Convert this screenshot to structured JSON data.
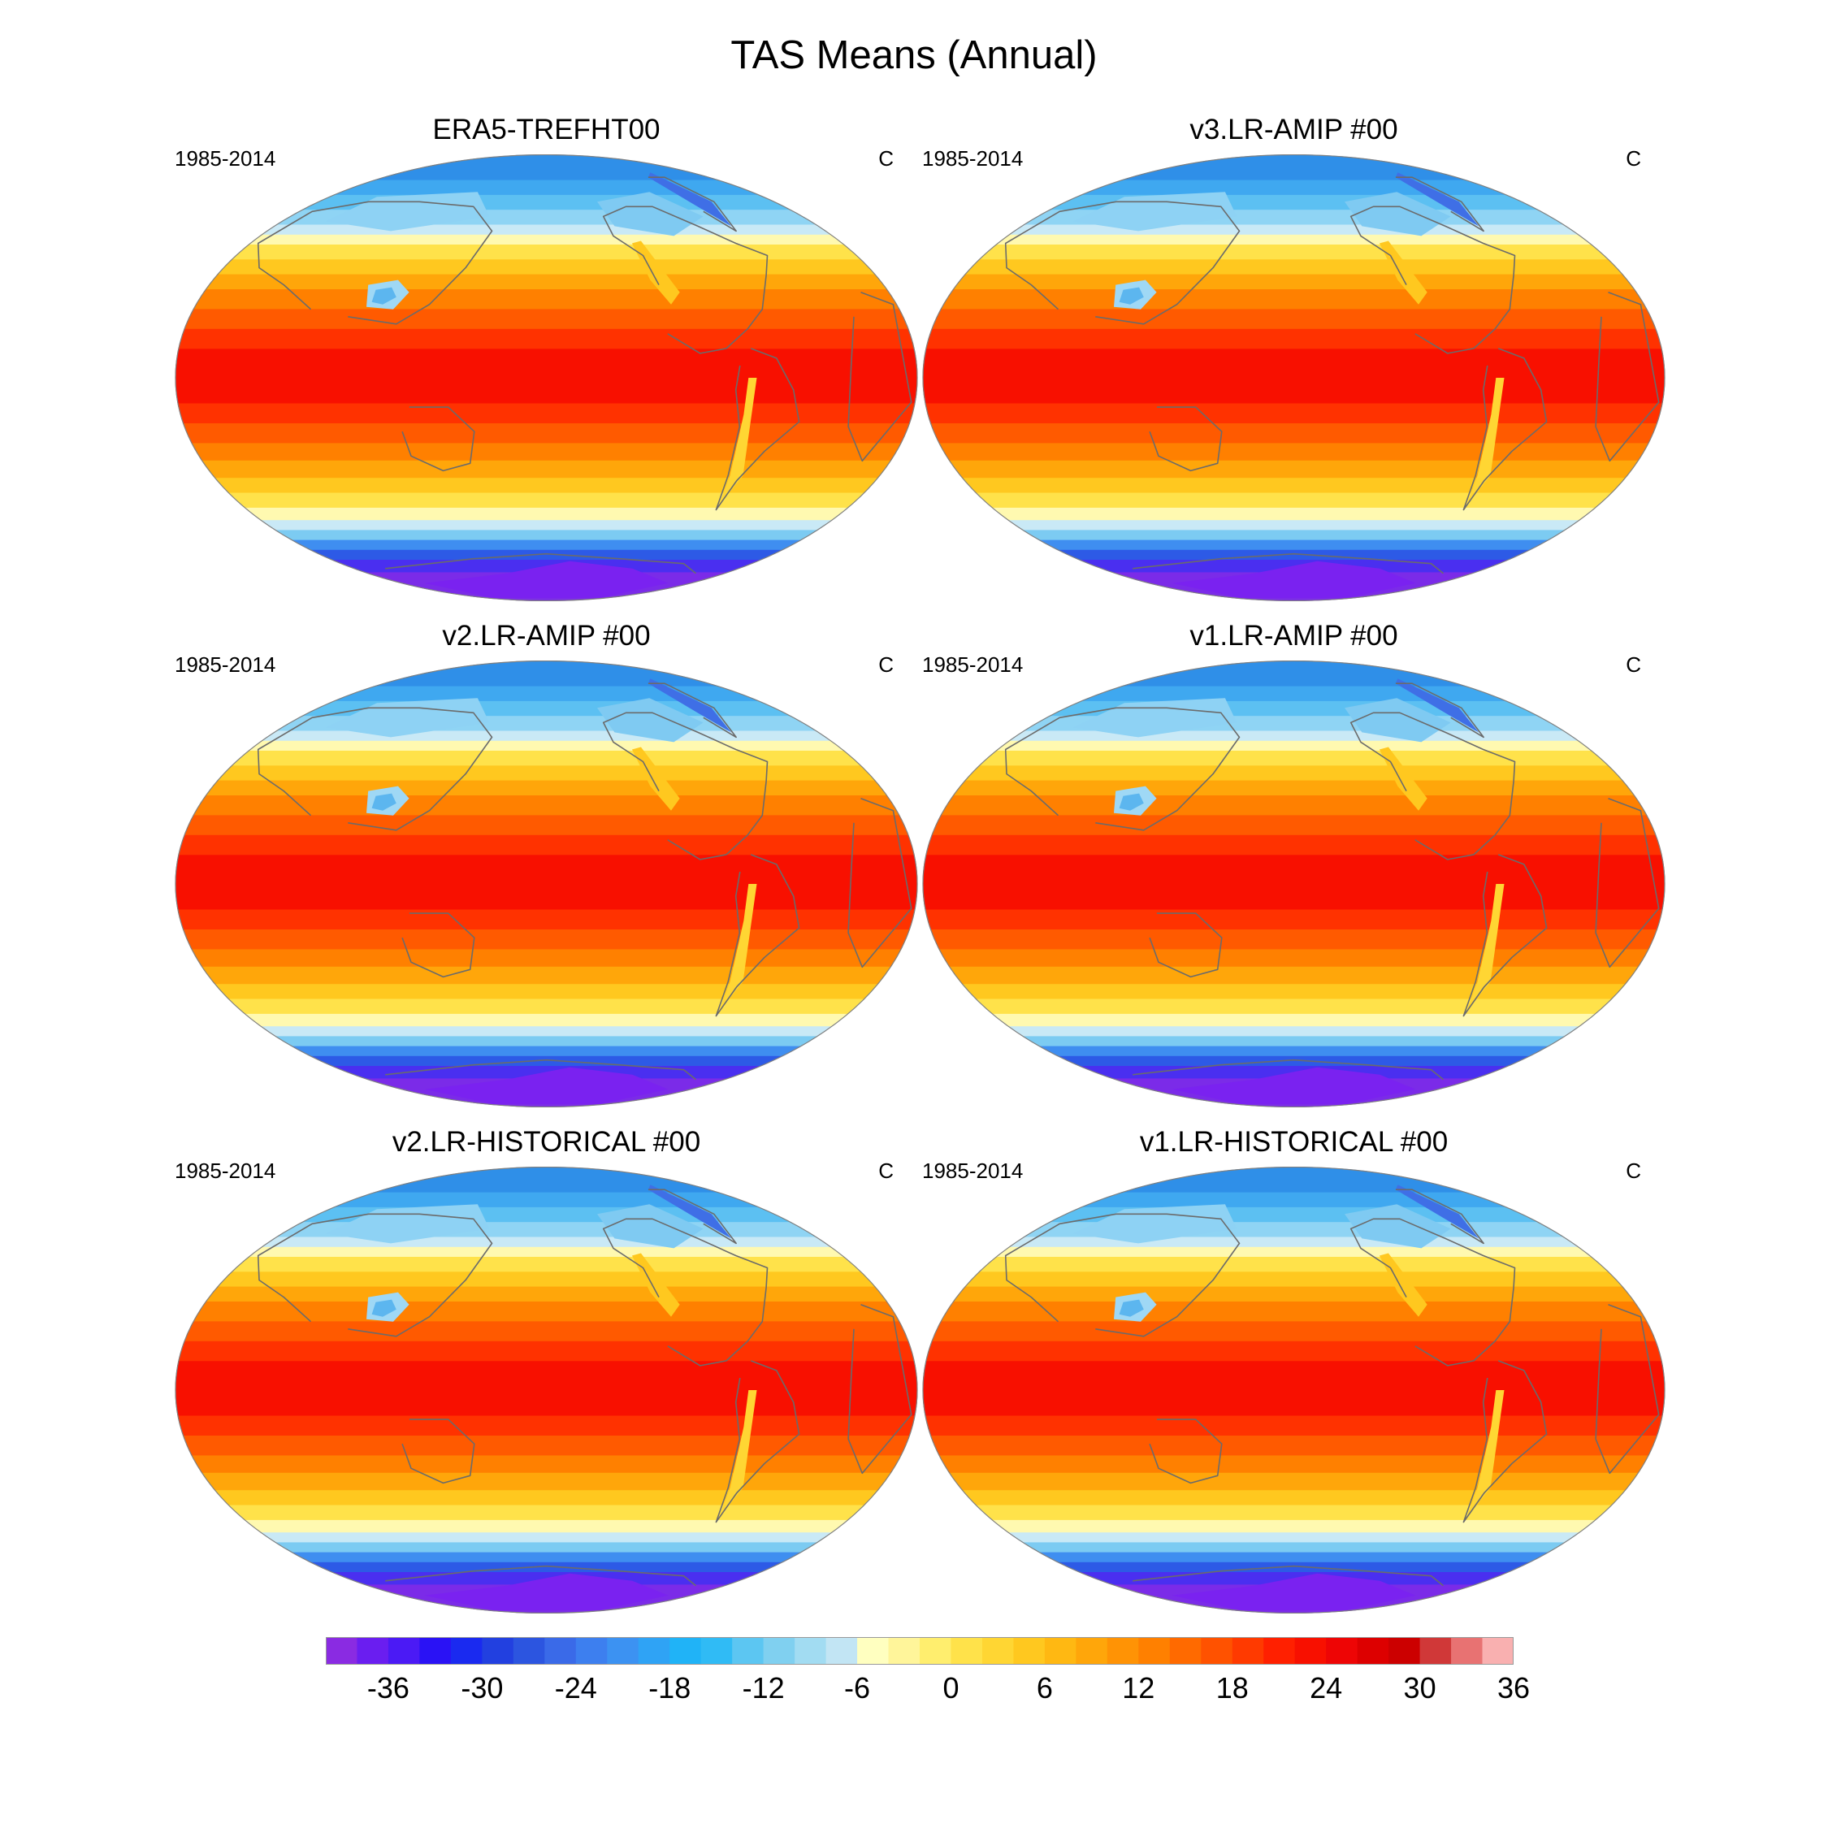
{
  "title": "TAS Means (Annual)",
  "panels": [
    {
      "title": "ERA5-TREFHT00",
      "period": "1985-2014",
      "units": "C"
    },
    {
      "title": "v3.LR-AMIP  #00",
      "period": "1985-2014",
      "units": "C"
    },
    {
      "title": "v2.LR-AMIP  #00",
      "period": "1985-2014",
      "units": "C"
    },
    {
      "title": "v1.LR-AMIP  #00",
      "period": "1985-2014",
      "units": "C"
    },
    {
      "title": "v2.LR-HISTORICAL  #00",
      "period": "1985-2014",
      "units": "C"
    },
    {
      "title": "v1.LR-HISTORICAL  #00",
      "period": "1985-2014",
      "units": "C"
    }
  ],
  "colorbar": {
    "tick_labels": [
      "-36",
      "-30",
      "-24",
      "-18",
      "-12",
      "-6",
      "0",
      "6",
      "12",
      "18",
      "24",
      "30",
      "36"
    ],
    "colors": [
      "#8a2be2",
      "#6a1ef0",
      "#4b1af5",
      "#2a12f5",
      "#1a2af0",
      "#2240e0",
      "#2c55e0",
      "#3a6ae8",
      "#3d7fef",
      "#3c92f2",
      "#2fa3f5",
      "#20b3f7",
      "#30bbf5",
      "#5cc6f2",
      "#80d0f0",
      "#a2dcf2",
      "#c2e5f4",
      "#ffffc0",
      "#fff59a",
      "#ffee6e",
      "#ffe24a",
      "#ffd633",
      "#ffc81f",
      "#ffb812",
      "#ffa60a",
      "#ff9305",
      "#ff8000",
      "#ff6a00",
      "#ff5200",
      "#ff3a00",
      "#ff2000",
      "#f81000",
      "#ee0505",
      "#dd0000",
      "#cc0000",
      "#d03838",
      "#e87272",
      "#f9b0b0"
    ]
  }
}
